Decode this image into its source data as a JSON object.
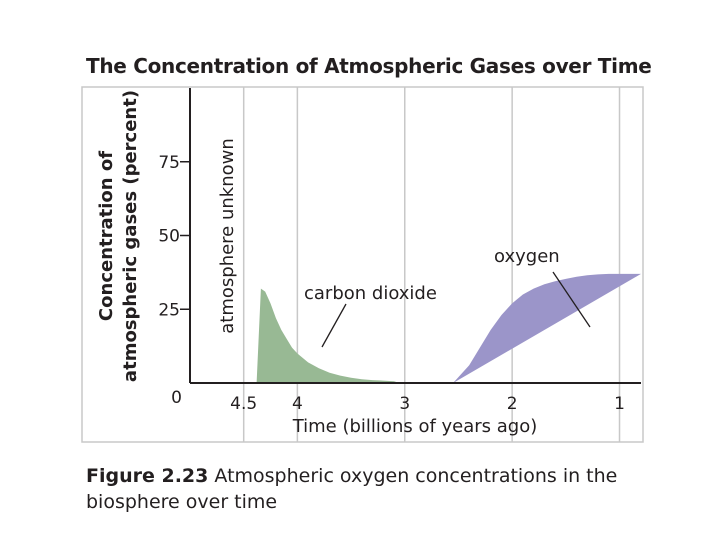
{
  "chart_data": {
    "type": "area",
    "title": "The Concentration of Atmospheric Gases over Time",
    "xlabel": "Time (billions of years ago)",
    "ylabel_lines": [
      "Concentration of",
      "atmospheric gases (percent)"
    ],
    "x_ticks": [
      {
        "value": 4.5,
        "label": "4.5"
      },
      {
        "value": 4,
        "label": "4"
      },
      {
        "value": 3,
        "label": "3"
      },
      {
        "value": 2,
        "label": "2"
      },
      {
        "value": 1,
        "label": "1"
      }
    ],
    "y_ticks": [
      {
        "value": 0,
        "label": "0"
      },
      {
        "value": 25,
        "label": "25"
      },
      {
        "value": 50,
        "label": "50"
      },
      {
        "value": 75,
        "label": "75"
      }
    ],
    "x_range": [
      5.0,
      0.8
    ],
    "x_direction": "reversed",
    "ylim": [
      0,
      100
    ],
    "grid": "vertical",
    "unknown_region": {
      "x_range": [
        5.0,
        4.4
      ],
      "label": "atmosphere unknown"
    },
    "series": [
      {
        "name": "carbon dioxide",
        "color": "#98b994",
        "x": [
          4.38,
          4.34,
          4.3,
          4.25,
          4.2,
          4.15,
          4.1,
          4.05,
          4.0,
          3.9,
          3.8,
          3.7,
          3.6,
          3.5,
          3.4,
          3.3,
          3.2,
          3.1,
          3.05
        ],
        "y": [
          0,
          32,
          31,
          27,
          22,
          18,
          15,
          12,
          10,
          7,
          5,
          3.5,
          2.5,
          1.8,
          1.3,
          1,
          0.8,
          0.6,
          0
        ]
      },
      {
        "name": "oxygen",
        "color": "#9b95c9",
        "x": [
          2.55,
          2.4,
          2.3,
          2.2,
          2.1,
          2.0,
          1.9,
          1.8,
          1.7,
          1.6,
          1.5,
          1.4,
          1.3,
          1.2,
          1.1,
          1.0,
          0.9,
          0.8
        ],
        "y": [
          0,
          6,
          12,
          18,
          23,
          27,
          30,
          32,
          33.5,
          34.5,
          35.3,
          36,
          36.5,
          36.8,
          37,
          37,
          37,
          37
        ]
      }
    ],
    "annotations": [
      {
        "text": "carbon dioxide",
        "series": "carbon dioxide"
      },
      {
        "text": "oxygen",
        "series": "oxygen"
      }
    ]
  },
  "caption": {
    "label": "Figure 2.23",
    "text": " Atmospheric oxygen concentrations in the biosphere over time"
  },
  "colors": {
    "grid": "#c8c8c8",
    "axis": "#231f20",
    "text": "#231f20"
  }
}
